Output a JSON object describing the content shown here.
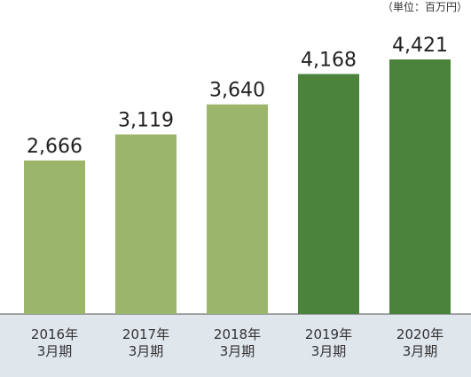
{
  "chart_data": {
    "type": "bar",
    "unit_note": "（単位：百万円）",
    "categories": [
      "2016年\n3月期",
      "2017年\n3月期",
      "2018年\n3月期",
      "2019年\n3月期",
      "2020年\n3月期"
    ],
    "values": [
      2666,
      3119,
      3640,
      4168,
      4421
    ],
    "value_labels": [
      "2,666",
      "3,119",
      "3,640",
      "4,168",
      "4,421"
    ],
    "colors": [
      "#9bb56b",
      "#9bb56b",
      "#9bb56b",
      "#4b833d",
      "#4b833d"
    ]
  }
}
